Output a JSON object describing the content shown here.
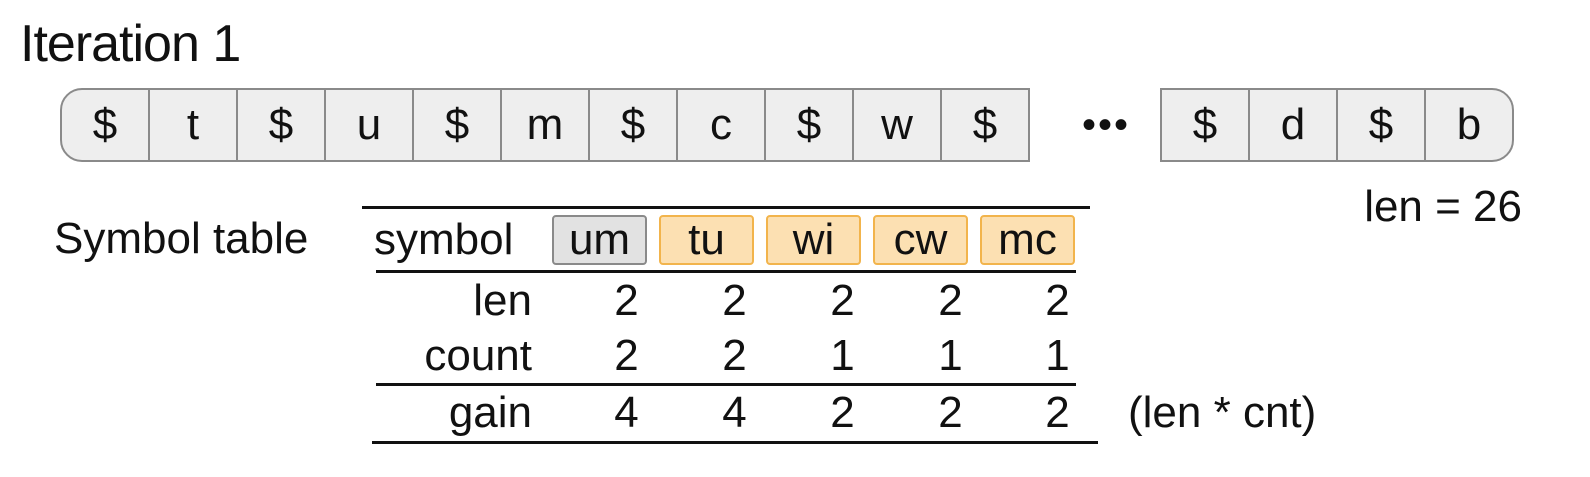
{
  "title": "Iteration 1",
  "sequence": {
    "left_cells": [
      "$",
      "t",
      "$",
      "u",
      "$",
      "m",
      "$",
      "c",
      "$",
      "w",
      "$"
    ],
    "ellipsis": "•••",
    "right_cells": [
      "$",
      "d",
      "$",
      "b"
    ],
    "length_label": "len = 26"
  },
  "symbol_table": {
    "label": "Symbol table",
    "header_label": "symbol",
    "symbols": [
      {
        "text": "um",
        "highlight": "grey"
      },
      {
        "text": "tu",
        "highlight": "orange"
      },
      {
        "text": "wi",
        "highlight": "orange"
      },
      {
        "text": "cw",
        "highlight": "orange"
      },
      {
        "text": "mc",
        "highlight": "orange"
      }
    ],
    "rows": [
      {
        "label": "len",
        "values": [
          "2",
          "2",
          "2",
          "2",
          "2"
        ]
      },
      {
        "label": "count",
        "values": [
          "2",
          "2",
          "1",
          "1",
          "1"
        ]
      },
      {
        "label": "gain",
        "values": [
          "4",
          "4",
          "2",
          "2",
          "2"
        ]
      }
    ],
    "gain_note": "(len * cnt)"
  },
  "colors": {
    "cell_fill": "#eeeeee",
    "cell_border": "#8a8a8a",
    "grey_highlight": "#e2e2e2",
    "orange_highlight": "#fce0b2",
    "orange_border": "#f2b44c"
  }
}
